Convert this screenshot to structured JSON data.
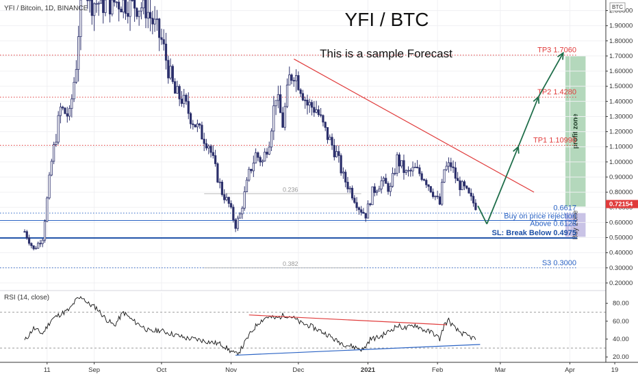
{
  "header": {
    "symbol": "YFI / Bitcoin, 1D, BINANCE",
    "currency": "BTC"
  },
  "title": "YFI / BTC",
  "subtitle": "This is a sample Forecast",
  "colors": {
    "up": "#2b2f6b",
    "down": "#2b2f6b",
    "resistance": "#e03b3b",
    "support": "#2962c4",
    "forecast": "#1f6e4a",
    "profit_zone": "#b4d8bc",
    "buy_zone": "#c9c3e6",
    "current_price_badge": "#e03b3b",
    "target": "#e03b3b",
    "sl_line": "#1c4fa6"
  },
  "chart_data": {
    "type": "candlestick",
    "price": {
      "ylim": [
        0.15,
        2.07
      ],
      "y_ticks": [
        "2.00000",
        "1.90000",
        "1.80000",
        "1.70000",
        "1.60000",
        "1.50000",
        "1.40000",
        "1.30000",
        "1.20000",
        "1.10000",
        "1.00000",
        "0.90000",
        "0.80000",
        "0.70000",
        "0.60000",
        "0.50000",
        "0.40000",
        "0.30000",
        "0.20000"
      ],
      "y_tick_values": [
        2.0,
        1.9,
        1.8,
        1.7,
        1.6,
        1.5,
        1.4,
        1.3,
        1.2,
        1.1,
        1.0,
        0.9,
        0.8,
        0.7,
        0.6,
        0.5,
        0.4,
        0.3,
        0.2
      ],
      "x_ticks": [
        "11",
        "Sep",
        "Oct",
        "Nov",
        "Dec",
        "2021",
        "Feb",
        "Mar",
        "Apr",
        "19"
      ],
      "x_tick_days": [
        10,
        31,
        61,
        92,
        122,
        153,
        184,
        212,
        243,
        263
      ],
      "x_range_days": [
        0,
        270
      ],
      "current_price": {
        "label": "0.72154",
        "value": 0.72154
      },
      "levels": [
        {
          "name": "tp3",
          "label": "TP3 1.7060",
          "value": 1.706,
          "style": "dotted",
          "color": "#e03b3b"
        },
        {
          "name": "tp2",
          "label": "TP2 1.4280",
          "value": 1.428,
          "style": "dotted",
          "color": "#e03b3b"
        },
        {
          "name": "tp1",
          "label": "TP1 1.10990",
          "value": 1.1099,
          "style": "dotted",
          "color": "#e03b3b"
        },
        {
          "name": "r1",
          "label": "0.6617",
          "value": 0.6617,
          "style": "dotted",
          "color": "#2962c4"
        },
        {
          "name": "buy",
          "label": "Buy on price rejection",
          "sublabel": "Above 0.6128",
          "value": 0.6128,
          "style": "solid",
          "color": "#2962c4"
        },
        {
          "name": "sl",
          "label": "SL: Break Below 0.4975",
          "value": 0.4975,
          "style": "solid",
          "color": "#1c4fa6"
        },
        {
          "name": "s3",
          "label": "S3 0.3000",
          "value": 0.3,
          "style": "dotted",
          "color": "#2962c4"
        }
      ],
      "fib": [
        {
          "label": "0.236",
          "value": 0.79,
          "from": 80,
          "to": 125
        },
        {
          "label": "0.382",
          "value": 0.3,
          "from": 80,
          "to": 125
        }
      ],
      "trendline": {
        "from": {
          "day": 120,
          "value": 1.68
        },
        "to": {
          "day": 227,
          "value": 0.8
        }
      },
      "forecast_path": [
        {
          "day": 202,
          "value": 0.71
        },
        {
          "day": 206,
          "value": 0.59
        },
        {
          "day": 220,
          "value": 1.1
        },
        {
          "day": 229,
          "value": 1.43
        },
        {
          "day": 240,
          "value": 1.72
        }
      ],
      "zones": [
        {
          "name": "profit",
          "label": "profit zone",
          "from": 0.705,
          "to": 1.7,
          "day_from": 241,
          "day_to": 250
        },
        {
          "name": "buy",
          "label": "Buy Zone",
          "from": 0.505,
          "to": 0.662,
          "day_from": 241,
          "day_to": 250
        }
      ],
      "anchors": [
        [
          0,
          0.54
        ],
        [
          4,
          0.42
        ],
        [
          8,
          0.5
        ],
        [
          12,
          1.0
        ],
        [
          16,
          1.35
        ],
        [
          20,
          1.3
        ],
        [
          23,
          1.65
        ],
        [
          26,
          2.3
        ],
        [
          29,
          2.06
        ],
        [
          35,
          2.05
        ],
        [
          42,
          2.06
        ],
        [
          47,
          2.05
        ],
        [
          54,
          2.02
        ],
        [
          61,
          1.8
        ],
        [
          64,
          1.62
        ],
        [
          67,
          1.45
        ],
        [
          70,
          1.42
        ],
        [
          74,
          1.3
        ],
        [
          78,
          1.2
        ],
        [
          82,
          1.12
        ],
        [
          85,
          0.95
        ],
        [
          88,
          0.8
        ],
        [
          91,
          0.72
        ],
        [
          94,
          0.58
        ],
        [
          96,
          0.65
        ],
        [
          100,
          0.92
        ],
        [
          103,
          1.05
        ],
        [
          106,
          1.0
        ],
        [
          109,
          1.15
        ],
        [
          112,
          1.45
        ],
        [
          115,
          1.25
        ],
        [
          118,
          1.55
        ],
        [
          120,
          1.6
        ],
        [
          123,
          1.5
        ],
        [
          126,
          1.38
        ],
        [
          130,
          1.35
        ],
        [
          134,
          1.2
        ],
        [
          139,
          1.05
        ],
        [
          142,
          0.9
        ],
        [
          145,
          0.82
        ],
        [
          149,
          0.7
        ],
        [
          152,
          0.65
        ],
        [
          155,
          0.8
        ],
        [
          159,
          0.87
        ],
        [
          163,
          0.82
        ],
        [
          166,
          1.02
        ],
        [
          170,
          0.92
        ],
        [
          174,
          0.95
        ],
        [
          178,
          0.9
        ],
        [
          182,
          0.8
        ],
        [
          185,
          0.72
        ],
        [
          187,
          0.95
        ],
        [
          190,
          0.98
        ],
        [
          193,
          0.86
        ],
        [
          196,
          0.82
        ],
        [
          199,
          0.75
        ],
        [
          201,
          0.71
        ]
      ]
    },
    "rsi": {
      "label": "RSI (14, close)",
      "ylim": [
        14,
        92
      ],
      "y_ticks": [
        "80.00",
        "60.00",
        "40.00",
        "20.00"
      ],
      "y_tick_values": [
        80,
        60,
        40,
        20
      ],
      "levels": [
        70,
        30
      ],
      "anchors": [
        [
          0,
          38
        ],
        [
          4,
          52
        ],
        [
          8,
          46
        ],
        [
          12,
          62
        ],
        [
          16,
          68
        ],
        [
          20,
          73
        ],
        [
          23,
          84
        ],
        [
          26,
          87
        ],
        [
          28,
          80
        ],
        [
          32,
          75
        ],
        [
          36,
          63
        ],
        [
          40,
          55
        ],
        [
          44,
          70
        ],
        [
          48,
          61
        ],
        [
          52,
          55
        ],
        [
          56,
          48
        ],
        [
          60,
          50
        ],
        [
          64,
          47
        ],
        [
          68,
          44
        ],
        [
          72,
          41
        ],
        [
          76,
          40
        ],
        [
          80,
          38
        ],
        [
          84,
          36
        ],
        [
          88,
          34
        ],
        [
          91,
          28
        ],
        [
          94,
          23
        ],
        [
          96,
          27
        ],
        [
          100,
          44
        ],
        [
          104,
          58
        ],
        [
          108,
          65
        ],
        [
          112,
          63
        ],
        [
          116,
          67
        ],
        [
          119,
          65
        ],
        [
          123,
          58
        ],
        [
          127,
          55
        ],
        [
          131,
          50
        ],
        [
          135,
          45
        ],
        [
          139,
          38
        ],
        [
          143,
          34
        ],
        [
          147,
          31
        ],
        [
          151,
          28
        ],
        [
          154,
          40
        ],
        [
          158,
          42
        ],
        [
          162,
          48
        ],
        [
          166,
          55
        ],
        [
          170,
          52
        ],
        [
          174,
          56
        ],
        [
          178,
          50
        ],
        [
          182,
          47
        ],
        [
          185,
          40
        ],
        [
          187,
          56
        ],
        [
          189,
          61
        ],
        [
          192,
          51
        ],
        [
          196,
          45
        ],
        [
          199,
          42
        ],
        [
          201,
          40
        ]
      ],
      "resistance": {
        "from": {
          "day": 100,
          "value": 67
        },
        "to": {
          "day": 188,
          "value": 56
        }
      },
      "support": {
        "from": {
          "day": 94,
          "value": 22
        },
        "to": {
          "day": 203,
          "value": 34
        }
      }
    }
  }
}
